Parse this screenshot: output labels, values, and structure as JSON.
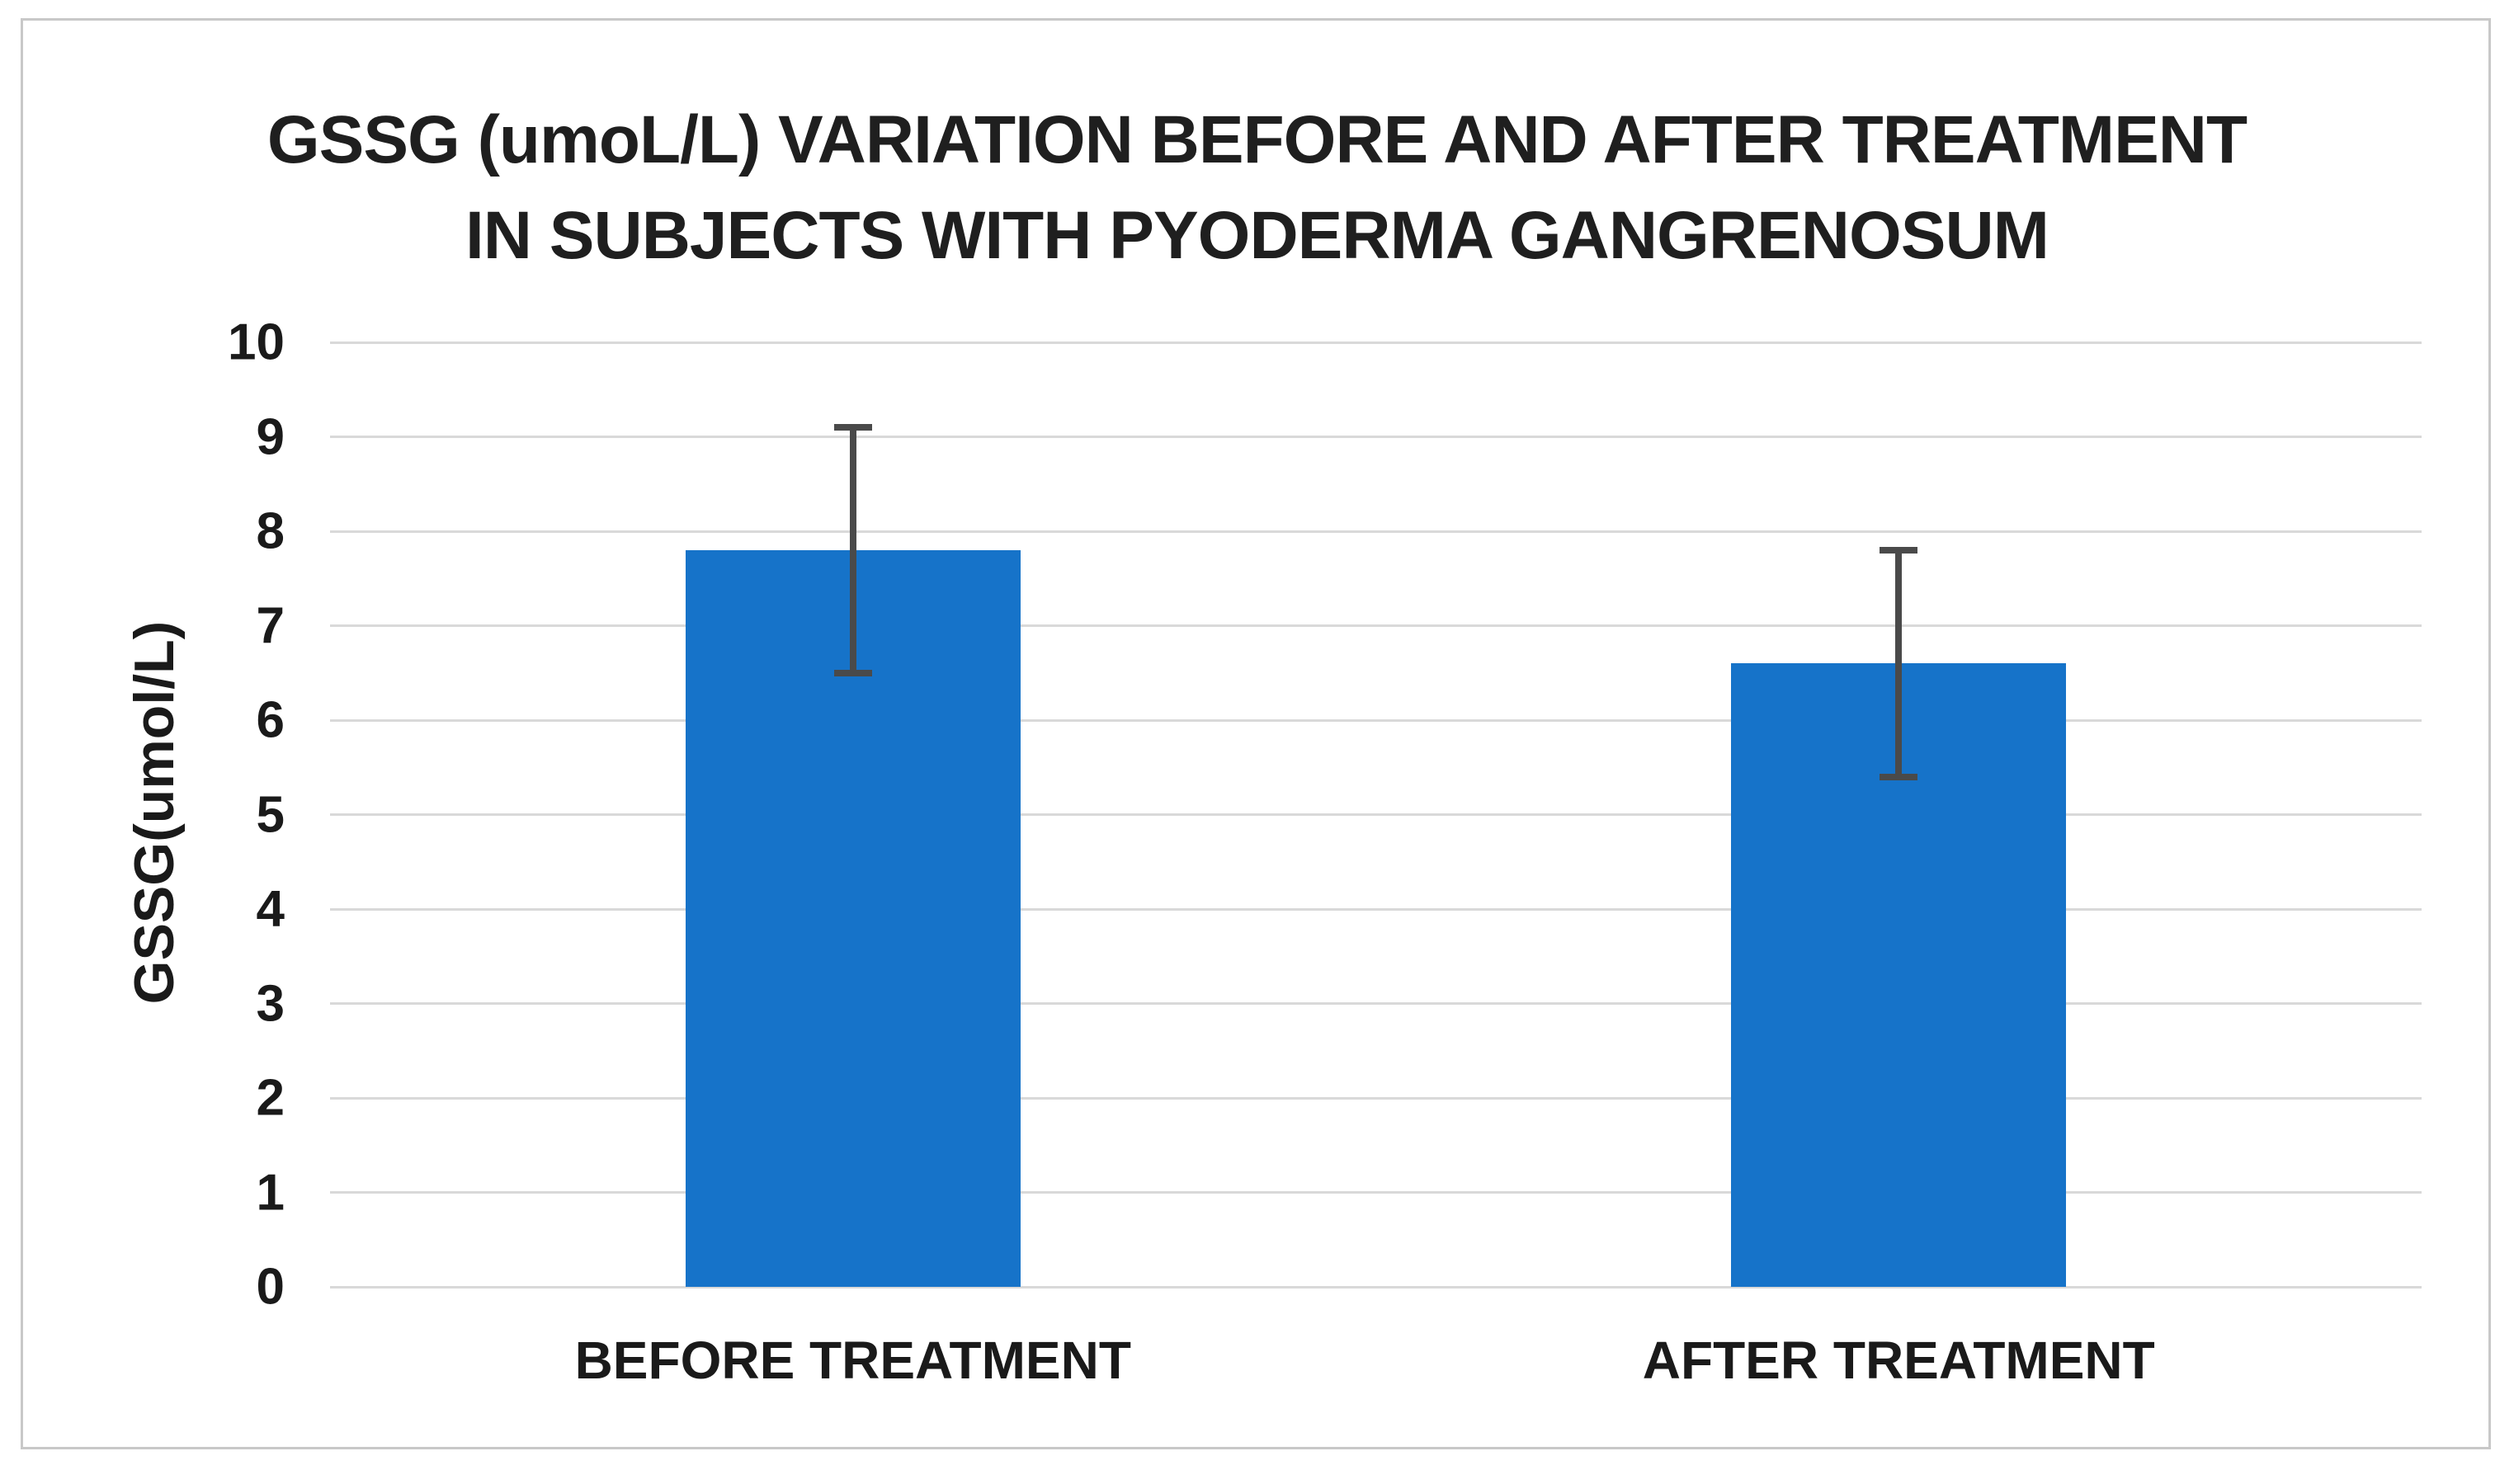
{
  "figure": {
    "background": "#ffffff",
    "border_color": "#c8c8c8"
  },
  "chart_data": {
    "type": "bar",
    "title_lines": [
      "GSSG (umoL/L) VARIATION BEFORE AND AFTER TREATMENT",
      "IN SUBJECTS WITH PYODERMA GANGRENOSUM"
    ],
    "categories": [
      "BEFORE TREATMENT",
      "AFTER TREATMENT"
    ],
    "values": [
      7.8,
      6.6
    ],
    "error_bars": {
      "upper": [
        9.1,
        7.8
      ],
      "lower": [
        6.5,
        5.4
      ]
    },
    "xlabel": "",
    "ylabel": "GSSG(umol/L)",
    "ylim": [
      0,
      10
    ],
    "yticks": [
      0,
      1,
      2,
      3,
      4,
      5,
      6,
      7,
      8,
      9,
      10
    ],
    "grid": "horizontal",
    "legend": "none",
    "bar_color": "#1673c9",
    "errorbar_color": "#4a4a4a",
    "gridline_color": "#d9d9d9",
    "text_color": "#1a1a1a"
  }
}
